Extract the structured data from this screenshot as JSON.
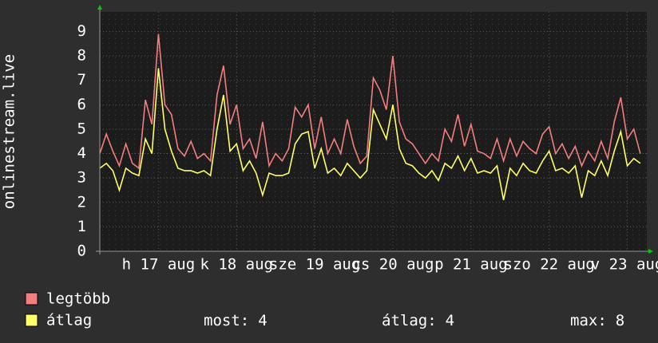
{
  "chart_data": {
    "type": "line",
    "y_label": "onlinestream.live",
    "x": [
      0,
      2,
      4,
      6,
      8,
      10,
      12,
      14,
      16,
      18,
      20,
      22,
      24,
      26,
      28,
      30,
      32,
      34,
      36,
      38,
      40,
      42,
      44,
      46,
      48,
      50,
      52,
      54,
      56,
      58,
      60,
      62,
      64,
      66,
      68,
      70,
      72,
      74,
      76,
      78,
      80,
      82,
      84,
      86,
      88,
      90,
      92,
      94,
      96,
      98,
      100,
      102,
      104,
      106,
      108,
      110,
      112,
      114,
      116,
      118,
      120,
      122,
      124,
      126,
      128,
      130,
      132,
      134,
      136,
      138,
      140,
      142,
      144,
      146,
      148,
      150,
      152,
      154,
      156,
      158,
      160,
      162,
      164,
      166
    ],
    "series": [
      {
        "name": "legtöbb",
        "color": "#f37e7e",
        "values": [
          4.0,
          4.8,
          4.1,
          3.5,
          4.4,
          3.6,
          3.4,
          6.2,
          5.2,
          8.9,
          6.0,
          5.6,
          4.2,
          3.9,
          4.5,
          3.8,
          4.0,
          3.7,
          6.4,
          7.6,
          5.2,
          6.0,
          4.2,
          4.6,
          3.8,
          5.3,
          3.5,
          4.0,
          3.7,
          4.2,
          5.9,
          5.5,
          6.0,
          4.2,
          5.5,
          4.0,
          4.6,
          4.0,
          5.4,
          4.3,
          3.6,
          3.9,
          7.1,
          6.6,
          5.8,
          8.0,
          5.3,
          4.6,
          4.4,
          4.0,
          3.6,
          4.0,
          3.7,
          5.0,
          4.5,
          5.6,
          4.3,
          5.2,
          4.1,
          4.0,
          3.8,
          4.6,
          3.7,
          4.6,
          3.9,
          4.5,
          4.2,
          4.0,
          4.8,
          5.1,
          4.0,
          4.4,
          3.8,
          4.3,
          3.5,
          4.1,
          3.7,
          4.5,
          3.8,
          5.3,
          6.3,
          4.6,
          5.0,
          4.0
        ]
      },
      {
        "name": "átlag",
        "color": "#ffff66",
        "values": [
          3.4,
          3.6,
          3.3,
          2.5,
          3.4,
          3.2,
          3.1,
          4.6,
          4.0,
          7.5,
          5.0,
          4.1,
          3.4,
          3.3,
          3.3,
          3.2,
          3.3,
          3.1,
          5.0,
          6.4,
          4.1,
          4.4,
          3.3,
          3.7,
          3.2,
          2.3,
          3.2,
          3.1,
          3.1,
          3.2,
          4.4,
          4.8,
          4.9,
          3.4,
          4.2,
          3.2,
          3.4,
          3.1,
          3.6,
          3.3,
          3.0,
          3.3,
          5.8,
          5.2,
          4.6,
          6.0,
          4.2,
          3.6,
          3.5,
          3.2,
          3.0,
          3.3,
          2.9,
          3.6,
          3.4,
          3.9,
          3.3,
          3.8,
          3.2,
          3.3,
          3.2,
          3.5,
          2.1,
          3.4,
          3.1,
          3.6,
          3.3,
          3.2,
          3.7,
          4.1,
          3.3,
          3.4,
          3.2,
          3.5,
          2.2,
          3.3,
          3.1,
          3.7,
          3.1,
          4.1,
          4.9,
          3.5,
          3.8,
          3.6
        ]
      }
    ],
    "xlim": [
      0,
      168
    ],
    "xticks": [
      {
        "value": 18,
        "label": "h 17 aug"
      },
      {
        "value": 42,
        "label": "k 18 aug"
      },
      {
        "value": 66,
        "label": "sze 19 aug"
      },
      {
        "value": 90,
        "label": "cs 20 aug"
      },
      {
        "value": 114,
        "label": "p 21 aug"
      },
      {
        "value": 138,
        "label": "szo 22 aug"
      },
      {
        "value": 162,
        "label": "v 23 aug"
      }
    ],
    "ylim": [
      0,
      9.8
    ],
    "yticks": [
      0,
      1,
      2,
      3,
      4,
      5,
      6,
      7,
      8,
      9
    ],
    "grid": true,
    "stats": [
      {
        "label": "most:",
        "value": 4
      },
      {
        "label": "átlag:",
        "value": 4
      },
      {
        "label": "max:",
        "value": 8
      }
    ]
  }
}
